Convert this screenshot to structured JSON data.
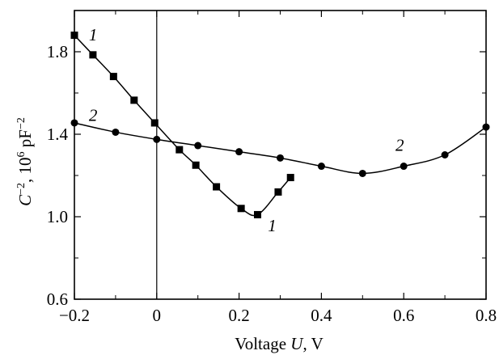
{
  "chart_data": {
    "type": "line",
    "title": "",
    "xlabel_parts": {
      "prefix": "Voltage ",
      "var": "U",
      "suffix": ", V"
    },
    "ylabel_parts": {
      "var": "C",
      "sup1": "−2",
      "mid": ", 10",
      "sup2": "6",
      "unit": " pF",
      "sup3": "−2"
    },
    "xlim": [
      -0.2,
      0.8
    ],
    "ylim": [
      0.6,
      2.0
    ],
    "x_ticks": [
      -0.2,
      0,
      0.2,
      0.4,
      0.6,
      0.8
    ],
    "x_tick_labels": [
      "−0.2",
      "0",
      "0.2",
      "0.4",
      "0.6",
      "0.8"
    ],
    "y_ticks": [
      0.6,
      1.0,
      1.4,
      1.8
    ],
    "y_tick_labels": [
      "0.6",
      "1.0",
      "1.4",
      "1.8"
    ],
    "y_minor_ticks": [
      0.8,
      1.2,
      1.6
    ],
    "grid": false,
    "vertical_line_x": 0,
    "series": [
      {
        "label": "1",
        "marker": "square",
        "x": [
          -0.2,
          -0.155,
          -0.105,
          -0.055,
          -0.005,
          0.055,
          0.095,
          0.145,
          0.205,
          0.245,
          0.295,
          0.325
        ],
        "y": [
          1.88,
          1.785,
          1.68,
          1.565,
          1.455,
          1.325,
          1.25,
          1.145,
          1.04,
          1.01,
          1.12,
          1.19
        ],
        "label_positions": [
          [
            -0.165,
            1.855
          ],
          [
            0.27,
            0.93
          ]
        ]
      },
      {
        "label": "2",
        "marker": "circle",
        "x": [
          -0.2,
          -0.1,
          0,
          0.1,
          0.2,
          0.3,
          0.4,
          0.5,
          0.6,
          0.7,
          0.8
        ],
        "y": [
          1.455,
          1.41,
          1.375,
          1.345,
          1.315,
          1.285,
          1.245,
          1.21,
          1.245,
          1.3,
          1.435
        ],
        "label_positions": [
          [
            -0.165,
            1.465
          ],
          [
            0.58,
            1.32
          ]
        ]
      }
    ]
  }
}
